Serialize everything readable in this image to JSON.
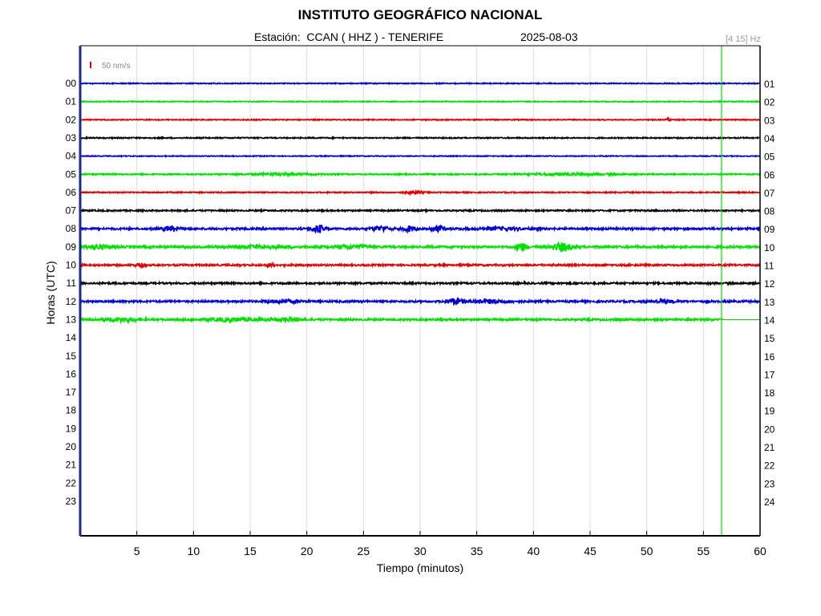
{
  "header": {
    "title": "INSTITUTO GEOGRÁFICO NACIONAL",
    "station": "Estación:  CCAN ( HHZ ) - TENERIFE",
    "date": "2025-08-03",
    "frequency": "[4 15] Hz"
  },
  "scale": {
    "label": "50 nm/s",
    "color": "#e00000"
  },
  "chart_data": {
    "type": "line",
    "title": "INSTITUTO GEOGRÁFICO NACIONAL",
    "xlabel": "Tiempo (minutos)",
    "ylabel": "Horas (UTC)",
    "xlim": [
      0,
      60
    ],
    "xticks": [
      5,
      10,
      15,
      20,
      25,
      30,
      35,
      40,
      45,
      50,
      55,
      60
    ],
    "left_ticks": [
      "00",
      "01",
      "02",
      "03",
      "04",
      "05",
      "06",
      "07",
      "08",
      "09",
      "10",
      "11",
      "12",
      "13",
      "14",
      "15",
      "16",
      "17",
      "18",
      "19",
      "20",
      "21",
      "22",
      "23"
    ],
    "right_ticks": [
      "01",
      "02",
      "03",
      "04",
      "05",
      "06",
      "07",
      "08",
      "09",
      "10",
      "11",
      "12",
      "13",
      "14",
      "15",
      "16",
      "17",
      "18",
      "19",
      "20",
      "21",
      "22",
      "23",
      "24"
    ],
    "grid": true,
    "color_cycle": [
      "#0000d0",
      "#00e000",
      "#e00000",
      "#000000"
    ],
    "current_time_minute": 56.6,
    "current_time_color": "#00dd00",
    "traces": [
      {
        "hour": "00",
        "noise": 1.0,
        "end_minute": 60,
        "bursts": []
      },
      {
        "hour": "01",
        "noise": 0.9,
        "end_minute": 60,
        "bursts": []
      },
      {
        "hour": "02",
        "noise": 1.0,
        "end_minute": 60,
        "bursts": [
          [
            51.9,
            0.15,
            4
          ]
        ]
      },
      {
        "hour": "03",
        "noise": 1.2,
        "end_minute": 60,
        "bursts": []
      },
      {
        "hour": "04",
        "noise": 0.9,
        "end_minute": 60,
        "bursts": []
      },
      {
        "hour": "05",
        "noise": 1.3,
        "end_minute": 60,
        "bursts": [
          [
            18.0,
            3.0,
            1.6
          ],
          [
            43.0,
            4.0,
            1.6
          ]
        ]
      },
      {
        "hour": "06",
        "noise": 1.2,
        "end_minute": 60,
        "bursts": [
          [
            29.5,
            0.8,
            3
          ]
        ]
      },
      {
        "hour": "07",
        "noise": 1.5,
        "end_minute": 60,
        "bursts": []
      },
      {
        "hour": "08",
        "noise": 2.0,
        "end_minute": 60,
        "bursts": [
          [
            8.0,
            0.8,
            5
          ],
          [
            21.0,
            0.6,
            8
          ],
          [
            26.5,
            0.8,
            5
          ],
          [
            29.0,
            0.6,
            5
          ],
          [
            31.5,
            0.6,
            6
          ],
          [
            37.0,
            2.0,
            2.5
          ]
        ]
      },
      {
        "hour": "09",
        "noise": 2.2,
        "end_minute": 60,
        "bursts": [
          [
            1.5,
            1.0,
            4
          ],
          [
            16.0,
            2.5,
            2.5
          ],
          [
            24.0,
            1.5,
            3.5
          ],
          [
            38.9,
            0.5,
            8
          ],
          [
            42.5,
            0.9,
            8
          ]
        ]
      },
      {
        "hour": "10",
        "noise": 1.8,
        "end_minute": 60,
        "bursts": [
          [
            5.3,
            0.4,
            3.5
          ],
          [
            16.8,
            0.3,
            3
          ]
        ]
      },
      {
        "hour": "11",
        "noise": 1.8,
        "end_minute": 60,
        "bursts": []
      },
      {
        "hour": "12",
        "noise": 2.0,
        "end_minute": 60,
        "bursts": [
          [
            18.0,
            1.5,
            3
          ],
          [
            33.0,
            0.7,
            6
          ],
          [
            36.0,
            1.8,
            3.5
          ],
          [
            51.5,
            1.0,
            2.5
          ]
        ]
      },
      {
        "hour": "13",
        "noise": 2.0,
        "end_minute": 56.6,
        "bursts": [
          [
            3.5,
            1.8,
            3.5
          ],
          [
            13.5,
            2.5,
            3
          ],
          [
            18.5,
            1.2,
            3
          ]
        ]
      }
    ]
  }
}
